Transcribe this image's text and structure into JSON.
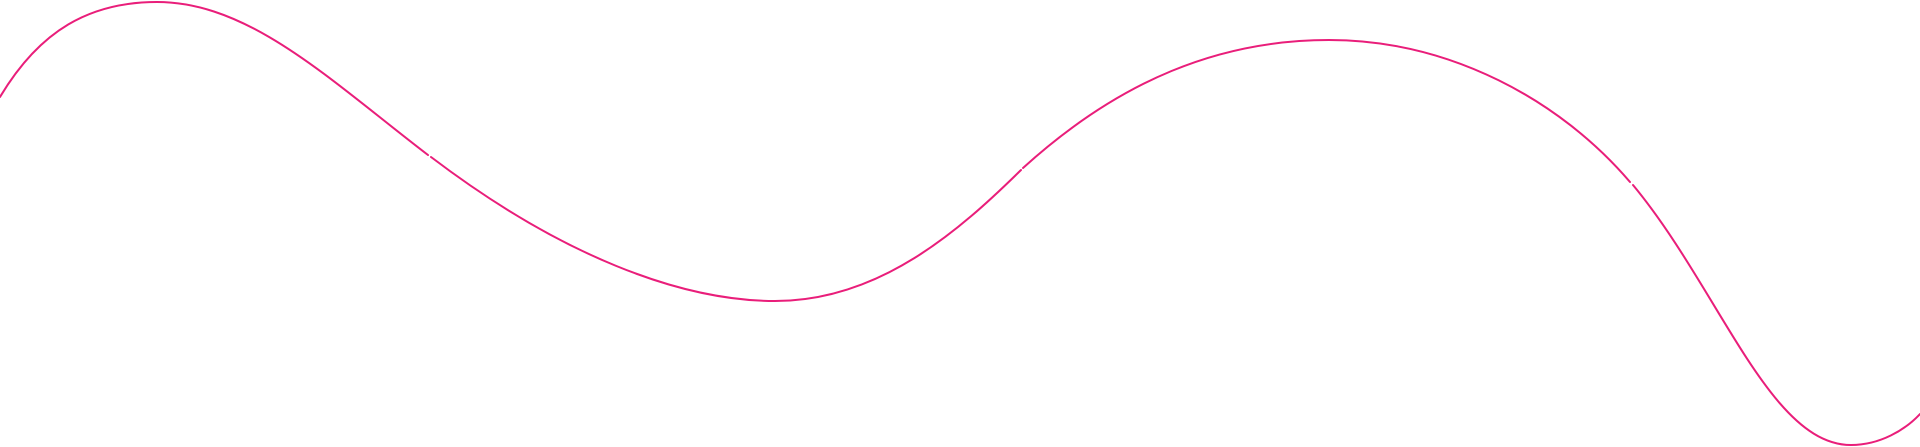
{
  "decoration": {
    "type": "wave-line",
    "stroke_color": "#e91e7a",
    "background": "#ffffff"
  }
}
